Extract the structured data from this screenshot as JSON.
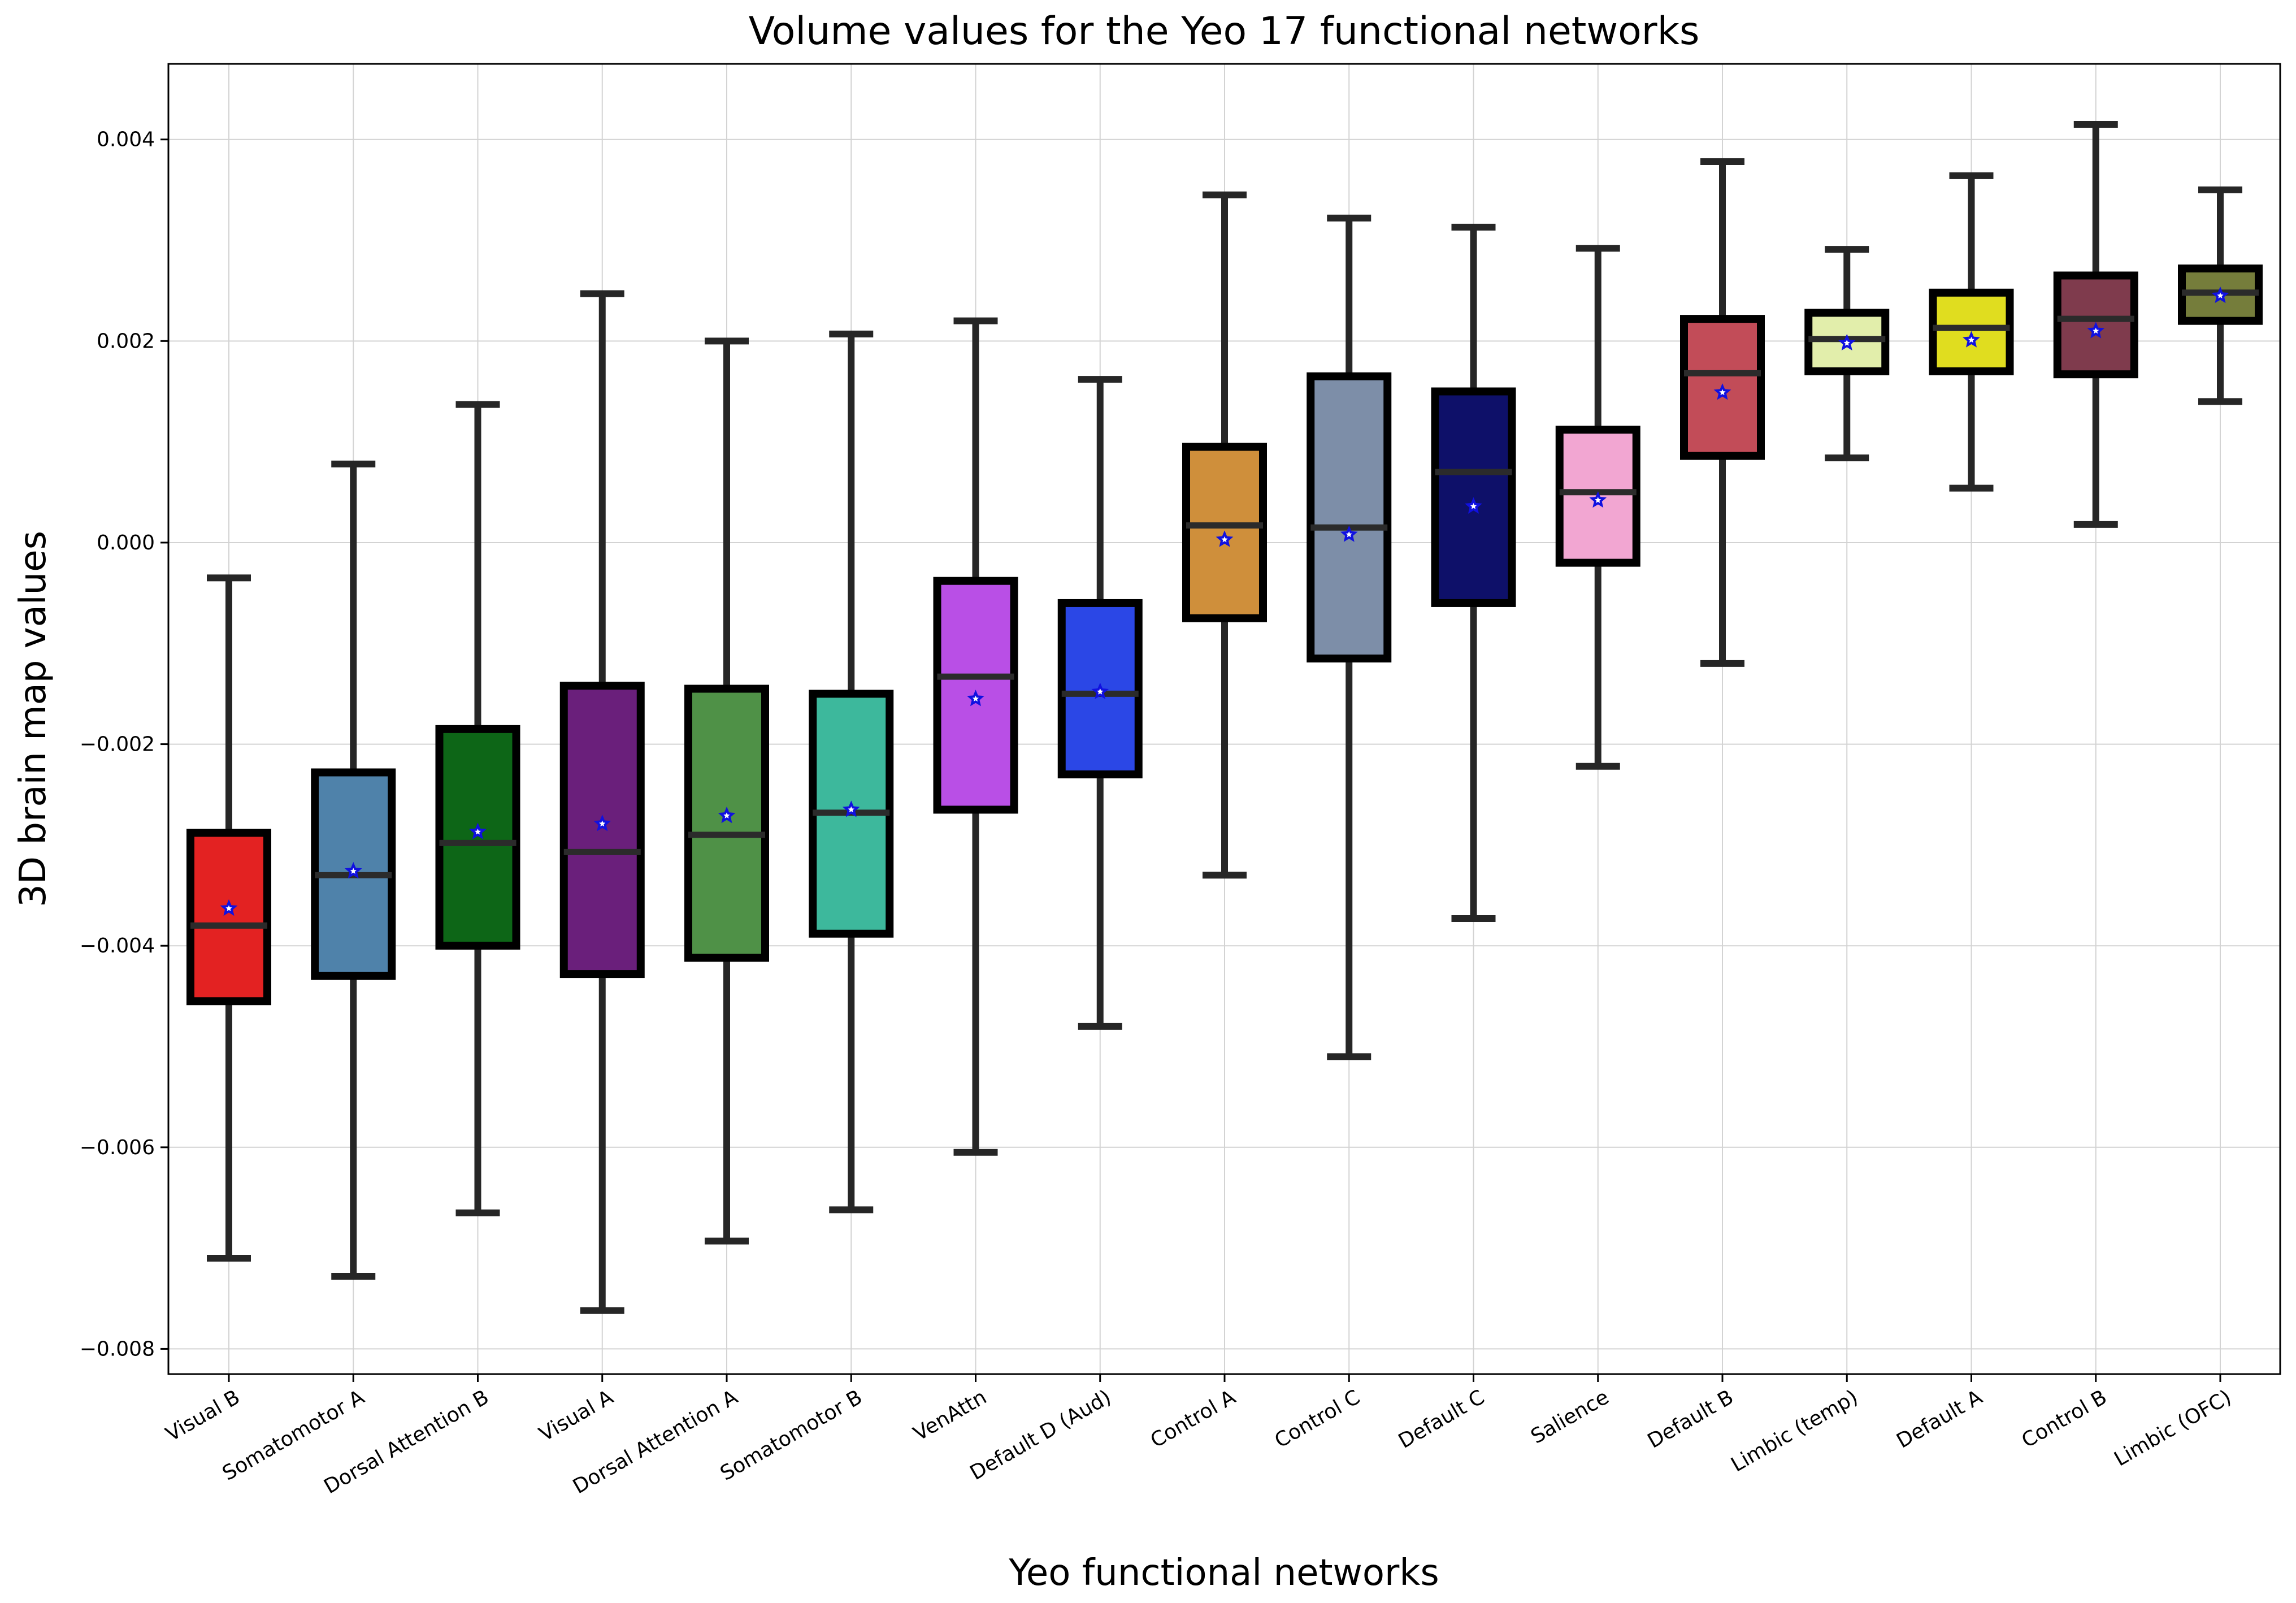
{
  "chart_data": {
    "type": "box",
    "title": "Volume values for the Yeo 17 functional networks",
    "xlabel": "Yeo functional networks",
    "ylabel": "3D brain map values",
    "ylim": [
      -0.00825,
      0.00475
    ],
    "yticks": [
      {
        "value": -0.008,
        "label": "−0.008"
      },
      {
        "value": -0.006,
        "label": "−0.006"
      },
      {
        "value": -0.004,
        "label": "−0.004"
      },
      {
        "value": -0.002,
        "label": "−0.002"
      },
      {
        "value": 0.0,
        "label": "0.000"
      },
      {
        "value": 0.002,
        "label": "0.002"
      },
      {
        "value": 0.004,
        "label": "0.004"
      }
    ],
    "grid": true,
    "mean_marker": "star",
    "mean_marker_color": "#1010e0",
    "categories": [
      "Visual B",
      "Somatomotor A",
      "Dorsal Attention B",
      "Visual A",
      "Dorsal Attention A",
      "Somatomotor B",
      "VenAttn",
      "Default D (Aud)",
      "Control A",
      "Control C",
      "Default C",
      "Salience",
      "Default B",
      "Limbic (temp)",
      "Default A",
      "Control B",
      "Limbic (OFC)"
    ],
    "boxes": [
      {
        "name": "Visual B",
        "color": "#e32222",
        "whisker_low": -0.0071,
        "q1": -0.00455,
        "median": -0.0038,
        "q3": -0.00288,
        "whisker_high": -0.00035,
        "mean": -0.00363
      },
      {
        "name": "Somatomotor A",
        "color": "#4f82aa",
        "whisker_low": -0.00728,
        "q1": -0.0043,
        "median": -0.0033,
        "q3": -0.00228,
        "whisker_high": 0.00078,
        "mean": -0.00326
      },
      {
        "name": "Dorsal Attention B",
        "color": "#0d6617",
        "whisker_low": -0.00665,
        "q1": -0.004,
        "median": -0.00298,
        "q3": -0.00185,
        "whisker_high": 0.00137,
        "mean": -0.00287
      },
      {
        "name": "Visual A",
        "color": "#6a1f7b",
        "whisker_low": -0.00762,
        "q1": -0.00428,
        "median": -0.00307,
        "q3": -0.00142,
        "whisker_high": 0.00247,
        "mean": -0.00279
      },
      {
        "name": "Dorsal Attention A",
        "color": "#4f9147",
        "whisker_low": -0.00693,
        "q1": -0.00412,
        "median": -0.0029,
        "q3": -0.00145,
        "whisker_high": 0.002,
        "mean": -0.00271
      },
      {
        "name": "Somatomotor B",
        "color": "#3db89c",
        "whisker_low": -0.00662,
        "q1": -0.00388,
        "median": -0.00268,
        "q3": -0.0015,
        "whisker_high": 0.00207,
        "mean": -0.00265
      },
      {
        "name": "VenAttn",
        "color": "#b94fe6",
        "whisker_low": -0.00605,
        "q1": -0.00265,
        "median": -0.00133,
        "q3": -0.00038,
        "whisker_high": 0.0022,
        "mean": -0.00155
      },
      {
        "name": "Default D (Aud)",
        "color": "#2b47e6",
        "whisker_low": -0.0048,
        "q1": -0.0023,
        "median": -0.0015,
        "q3": -0.0006,
        "whisker_high": 0.00162,
        "mean": -0.00148
      },
      {
        "name": "Control A",
        "color": "#cf8f3b",
        "whisker_low": -0.0033,
        "q1": -0.00075,
        "median": 0.00017,
        "q3": 0.00095,
        "whisker_high": 0.00345,
        "mean": 3e-05
      },
      {
        "name": "Control C",
        "color": "#7d8ea8",
        "whisker_low": -0.0051,
        "q1": -0.00115,
        "median": 0.00015,
        "q3": 0.00165,
        "whisker_high": 0.00322,
        "mean": 8e-05
      },
      {
        "name": "Default C",
        "color": "#0e1069",
        "whisker_low": -0.00373,
        "q1": -0.0006,
        "median": 0.0007,
        "q3": 0.0015,
        "whisker_high": 0.00313,
        "mean": 0.00036
      },
      {
        "name": "Salience",
        "color": "#f2a6d2",
        "whisker_low": -0.00222,
        "q1": -0.0002,
        "median": 0.0005,
        "q3": 0.00112,
        "whisker_high": 0.00292,
        "mean": 0.00042
      },
      {
        "name": "Default B",
        "color": "#c24c58",
        "whisker_low": -0.0012,
        "q1": 0.00086,
        "median": 0.00168,
        "q3": 0.00222,
        "whisker_high": 0.00378,
        "mean": 0.00149
      },
      {
        "name": "Limbic (temp)",
        "color": "#e2eeab",
        "whisker_low": 0.00084,
        "q1": 0.0017,
        "median": 0.00202,
        "q3": 0.00228,
        "whisker_high": 0.00291,
        "mean": 0.00198
      },
      {
        "name": "Default A",
        "color": "#e0dd1f",
        "whisker_low": 0.00054,
        "q1": 0.0017,
        "median": 0.00213,
        "q3": 0.00248,
        "whisker_high": 0.00364,
        "mean": 0.00201
      },
      {
        "name": "Control B",
        "color": "#7f3b4d",
        "whisker_low": 0.00018,
        "q1": 0.00167,
        "median": 0.00222,
        "q3": 0.00265,
        "whisker_high": 0.00415,
        "mean": 0.0021
      },
      {
        "name": "Limbic (OFC)",
        "color": "#757d3b",
        "whisker_low": 0.0014,
        "q1": 0.0022,
        "median": 0.00248,
        "q3": 0.00272,
        "whisker_high": 0.0035,
        "mean": 0.00245
      }
    ]
  }
}
